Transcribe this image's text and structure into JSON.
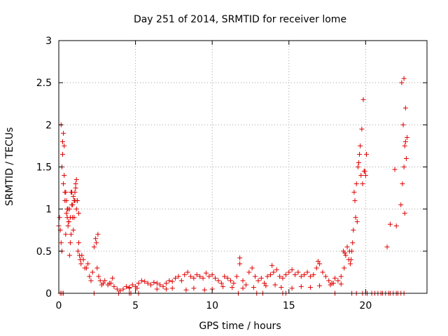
{
  "chart_data": {
    "type": "scatter",
    "title": "Day 251 of 2014, SRMTID for receiver lome",
    "xlabel": "GPS time / hours",
    "ylabel": "SRMTID / TECUs",
    "xlim": [
      0,
      24
    ],
    "ylim": [
      0,
      3
    ],
    "xticks": [
      0,
      5,
      10,
      15,
      20
    ],
    "yticks": [
      0,
      0.5,
      1,
      1.5,
      2,
      2.5,
      3
    ],
    "xtick_labels": [
      "0",
      "5",
      "10",
      "15",
      "20"
    ],
    "ytick_labels": [
      "0",
      "0.5",
      "1",
      "1.5",
      "2",
      "2.5",
      "3"
    ],
    "grid": true,
    "marker": "+",
    "marker_color": "#e00000",
    "series": [
      {
        "name": "SRMTID",
        "x": [
          0.0,
          0.05,
          0.1,
          0.15,
          0.2,
          0.25,
          0.3,
          0.35,
          0.4,
          0.45,
          0.5,
          0.55,
          0.6,
          0.65,
          0.7,
          0.75,
          0.8,
          0.85,
          0.9,
          0.95,
          1.0,
          1.05,
          1.1,
          1.15,
          1.2,
          1.25,
          1.3,
          1.35,
          1.4,
          1.45,
          1.5,
          1.6,
          1.7,
          1.8,
          1.9,
          2.0,
          2.1,
          2.2,
          2.3,
          2.4,
          2.5,
          2.6,
          2.7,
          2.8,
          2.9,
          3.0,
          3.2,
          3.4,
          3.6,
          3.8,
          4.0,
          4.2,
          4.4,
          4.6,
          4.8,
          5.0,
          5.2,
          5.4,
          5.6,
          5.8,
          6.0,
          6.2,
          6.4,
          6.6,
          6.8,
          7.0,
          7.2,
          7.4,
          7.6,
          7.8,
          8.0,
          8.2,
          8.4,
          8.6,
          8.8,
          9.0,
          9.2,
          9.4,
          9.6,
          9.8,
          10.0,
          10.2,
          10.4,
          10.6,
          10.8,
          11.0,
          11.2,
          11.4,
          11.6,
          11.8,
          12.0,
          12.2,
          12.4,
          12.6,
          12.8,
          13.0,
          13.2,
          13.4,
          13.6,
          13.8,
          14.0,
          14.2,
          14.4,
          14.6,
          14.8,
          15.0,
          15.2,
          15.4,
          15.6,
          15.8,
          16.0,
          16.2,
          16.4,
          16.6,
          16.8,
          17.0,
          17.2,
          17.4,
          17.6,
          17.8,
          18.0,
          18.2,
          18.4,
          18.6,
          18.7,
          18.8,
          18.9,
          19.0,
          19.1,
          19.2,
          19.3,
          19.4,
          19.5,
          19.6,
          19.7,
          19.8,
          19.9,
          20.0,
          21.4,
          21.6,
          21.9,
          22.0,
          22.3,
          22.4,
          22.5,
          22.6,
          22.7,
          0.2,
          0.3,
          0.4,
          0.5,
          0.6,
          0.7,
          0.8,
          0.9,
          1.0,
          1.1,
          1.2,
          1.3,
          0.25,
          0.35,
          0.45,
          0.55,
          0.65,
          0.75,
          0.85,
          0.95,
          1.05,
          1.15,
          2.45,
          2.55,
          3.3,
          3.5,
          11.8,
          13.9,
          16.9,
          17.9,
          18.55,
          18.65,
          19.25,
          19.35,
          19.45,
          19.55,
          19.65,
          19.75,
          19.85,
          19.95,
          20.05,
          19.15,
          19.05,
          18.95,
          22.35,
          22.45,
          22.55,
          22.65,
          22.5,
          22.6,
          22.55,
          0.15,
          4.6,
          5.1,
          6.4,
          7.0,
          7.4,
          8.3,
          8.8,
          9.5,
          10.0,
          10.7,
          11.3,
          12.0,
          12.7,
          13.5,
          14.1,
          14.5,
          15.2,
          15.8,
          16.4,
          17.0,
          17.7,
          18.4,
          19.1,
          19.4,
          20.1,
          20.6,
          21.0,
          21.3,
          21.6,
          22.0,
          22.3
        ],
        "y": [
          0.8,
          0.9,
          0.75,
          0.6,
          0.5,
          1.65,
          1.9,
          1.75,
          1.2,
          0.7,
          1.1,
          0.9,
          1.0,
          0.85,
          0.45,
          0.6,
          0.7,
          1.2,
          1.05,
          0.75,
          0.9,
          1.1,
          1.25,
          1.0,
          1.1,
          0.5,
          0.6,
          0.45,
          0.4,
          0.35,
          0.45,
          0.4,
          0.3,
          0.3,
          0.35,
          0.2,
          0.15,
          0.25,
          0.55,
          0.65,
          0.3,
          0.2,
          0.15,
          0.1,
          0.12,
          0.15,
          0.1,
          0.12,
          0.08,
          0.05,
          0.03,
          0.05,
          0.08,
          0.06,
          0.1,
          0.08,
          0.12,
          0.15,
          0.14,
          0.12,
          0.1,
          0.13,
          0.12,
          0.1,
          0.08,
          0.12,
          0.15,
          0.14,
          0.18,
          0.2,
          0.15,
          0.22,
          0.25,
          0.2,
          0.18,
          0.22,
          0.2,
          0.18,
          0.24,
          0.2,
          0.22,
          0.18,
          0.15,
          0.12,
          0.2,
          0.18,
          0.15,
          0.12,
          0.2,
          0.35,
          0.15,
          0.1,
          0.25,
          0.3,
          0.2,
          0.15,
          0.18,
          0.12,
          0.2,
          0.22,
          0.25,
          0.28,
          0.2,
          0.18,
          0.22,
          0.25,
          0.28,
          0.22,
          0.25,
          0.2,
          0.22,
          0.25,
          0.2,
          0.22,
          0.3,
          0.35,
          0.25,
          0.2,
          0.15,
          0.12,
          0.18,
          0.15,
          0.2,
          0.3,
          0.45,
          0.55,
          0.4,
          0.35,
          0.5,
          0.75,
          1.1,
          1.3,
          1.5,
          1.65,
          1.4,
          1.3,
          1.45,
          1.4,
          0.55,
          0.82,
          1.47,
          0.8,
          1.05,
          1.3,
          1.5,
          1.8,
          1.85,
          1.5,
          1.3,
          1.1,
          0.95,
          0.8,
          1.0,
          1.2,
          0.9,
          1.1,
          1.3,
          1.1,
          0.95,
          1.8,
          1.4,
          1.2,
          1.0,
          0.85,
          0.9,
          1.05,
          1.15,
          1.2,
          1.35,
          0.6,
          0.7,
          0.12,
          0.18,
          0.42,
          0.33,
          0.38,
          0.12,
          0.5,
          0.48,
          1.2,
          0.9,
          0.85,
          1.55,
          1.75,
          1.95,
          2.3,
          1.45,
          1.65,
          0.6,
          0.4,
          0.5,
          2.5,
          2.0,
          1.75,
          1.6,
          2.55,
          2.2,
          0.95,
          2.0,
          0.07,
          0.06,
          0.05,
          0.05,
          0.06,
          0.04,
          0.06,
          0.04,
          0.05,
          0.08,
          0.07,
          0.06,
          0.07,
          0.09,
          0.1,
          0.07,
          0.06,
          0.08,
          0.07,
          0.09,
          0.1,
          0.11,
          0.0,
          0.0,
          0.0,
          0.0,
          0.0,
          0.0,
          0.0,
          0.0,
          0.0
        ],
        "zeros_x": [
          0.1,
          0.2,
          0.3,
          2.3,
          3.9,
          4.6,
          4.7,
          5.2,
          11.7,
          12.9,
          13.3,
          14.6,
          14.8,
          18.0,
          19.8,
          20.0,
          20.4,
          20.8,
          21.1,
          21.5,
          21.8,
          22.1,
          22.5
        ]
      }
    ]
  }
}
